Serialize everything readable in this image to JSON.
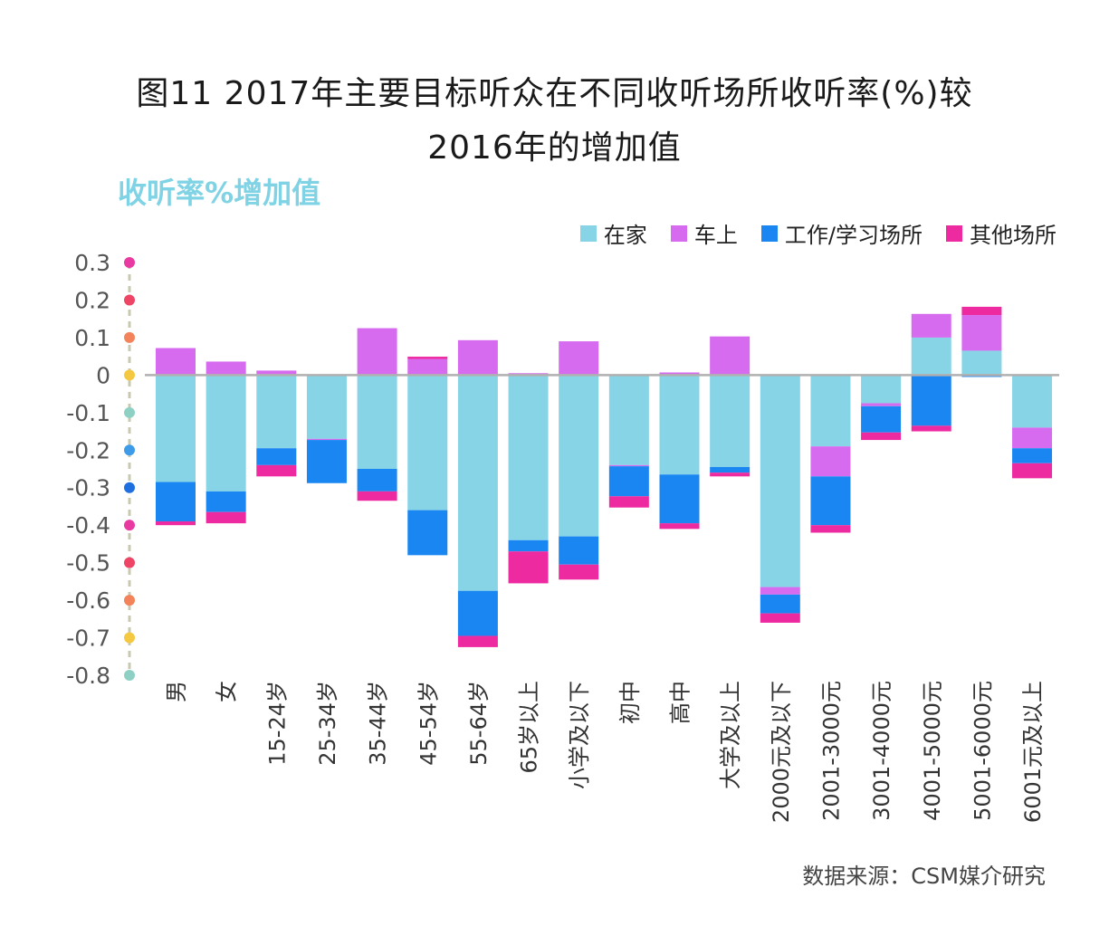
{
  "title_line1": "图11 2017年主要目标听众在不同收听场所收听率(%)较",
  "title_line2": "2016年的增加值",
  "source": "数据来源：CSM媒介研究",
  "chart_data": {
    "type": "bar",
    "stacked": true,
    "ylabel": "收听率%增加值",
    "ylim": [
      -0.8,
      0.3
    ],
    "yticks": [
      "0.3",
      "0.2",
      "0.1",
      "0",
      "-0.1",
      "-0.2",
      "-0.3",
      "-0.4",
      "-0.5",
      "-0.6",
      "-0.7",
      "-0.8"
    ],
    "ytick_values": [
      0.3,
      0.2,
      0.1,
      0,
      -0.1,
      -0.2,
      -0.3,
      -0.4,
      -0.5,
      -0.6,
      -0.7,
      -0.8
    ],
    "ytick_dot_colors": [
      "#e83aa0",
      "#ee4466",
      "#f2835a",
      "#f5c842",
      "#8ed1c4",
      "#3e9be8",
      "#1f6fe0",
      "#e83aa0",
      "#ee4466",
      "#f2835a",
      "#f5c842",
      "#8ed1c4"
    ],
    "categories": [
      "男",
      "女",
      "15-24岁",
      "25-34岁",
      "35-44岁",
      "45-54岁",
      "55-64岁",
      "65岁以上",
      "小学及以下",
      "初中",
      "高中",
      "大学及以上",
      "2000元及以下",
      "2001-3000元",
      "3001-4000元",
      "4001-5000元",
      "5001-6000元",
      "6001元及以上"
    ],
    "series": [
      {
        "name": "在家",
        "color": "#86d4e6",
        "values": [
          -0.285,
          -0.31,
          -0.195,
          -0.17,
          -0.25,
          -0.36,
          -0.575,
          -0.44,
          -0.43,
          -0.24,
          -0.265,
          -0.245,
          -0.565,
          -0.19,
          -0.075,
          0.1,
          0.065,
          -0.14
        ]
      },
      {
        "name": "车上",
        "color": "#d76bf0",
        "values": [
          0.072,
          0.036,
          0.012,
          -0.003,
          0.125,
          0.043,
          0.093,
          0.005,
          0.09,
          -0.003,
          0.007,
          0.103,
          -0.02,
          -0.08,
          -0.008,
          0.063,
          0.095,
          -0.055
        ]
      },
      {
        "name": "工作/学习场所",
        "color": "#1a86f2",
        "values": [
          -0.105,
          -0.055,
          -0.045,
          -0.115,
          -0.06,
          -0.12,
          -0.12,
          -0.03,
          -0.075,
          -0.08,
          -0.13,
          -0.015,
          -0.05,
          -0.13,
          -0.07,
          -0.135,
          -0.005,
          -0.04
        ]
      },
      {
        "name": "其他场所",
        "color": "#ee2aa0",
        "values": [
          -0.01,
          -0.03,
          -0.03,
          0,
          -0.025,
          0.006,
          -0.03,
          -0.085,
          -0.04,
          -0.03,
          -0.015,
          -0.01,
          -0.025,
          -0.02,
          -0.02,
          -0.015,
          0.022,
          -0.04
        ]
      }
    ]
  }
}
